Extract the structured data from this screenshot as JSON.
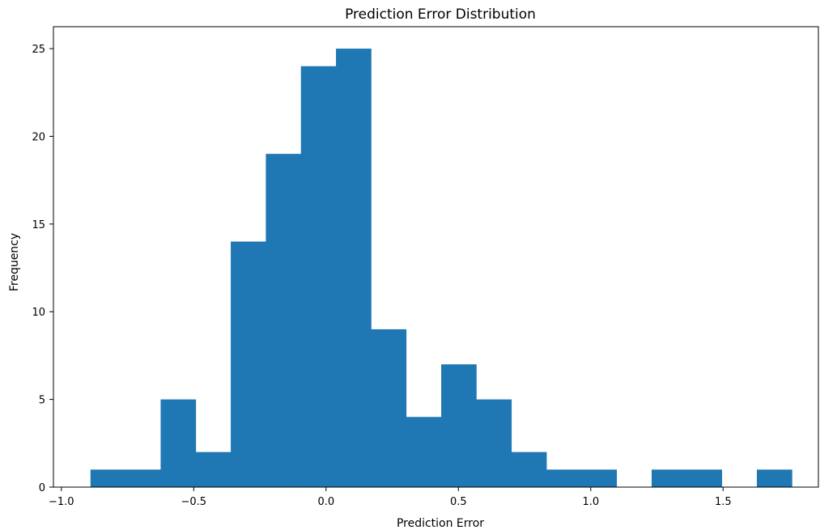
{
  "chart_data": {
    "type": "bar",
    "title": "Prediction Error Distribution",
    "xlabel": "Prediction Error",
    "ylabel": "Frequency",
    "bar_color": "#1f77b4",
    "xlim": [
      -1.03,
      1.86
    ],
    "ylim": [
      0,
      26.25
    ],
    "x_ticks": [
      -1.0,
      -0.5,
      0.0,
      0.5,
      1.0,
      1.5
    ],
    "x_tick_labels": [
      "−1.0",
      "−0.5",
      "0.0",
      "0.5",
      "1.0",
      "1.5"
    ],
    "y_ticks": [
      0,
      5,
      10,
      15,
      20,
      25
    ],
    "y_tick_labels": [
      "0",
      "5",
      "10",
      "15",
      "20",
      "25"
    ],
    "bin_edges": [
      -0.89,
      -0.7575,
      -0.625,
      -0.4925,
      -0.36,
      -0.2275,
      -0.095,
      0.0375,
      0.17,
      0.3025,
      0.435,
      0.5675,
      0.7,
      0.8325,
      0.965,
      1.0975,
      1.23,
      1.3625,
      1.495,
      1.6275,
      1.76
    ],
    "counts": [
      1,
      1,
      5,
      2,
      14,
      19,
      24,
      25,
      9,
      4,
      7,
      5,
      2,
      1,
      1,
      0,
      1,
      1,
      0,
      1
    ],
    "grid": false
  }
}
